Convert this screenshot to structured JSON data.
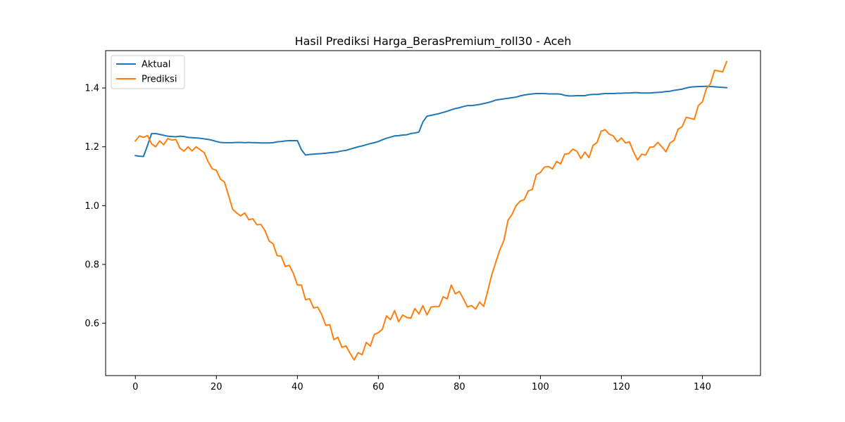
{
  "chart_data": {
    "type": "line",
    "title": "Hasil Prediksi Harga_BerasPremium_roll30 - Aceh",
    "xlabel": "",
    "ylabel": "",
    "xlim": [
      -7.35,
      154.35
    ],
    "ylim": [
      0.422,
      1.527
    ],
    "xticks": [
      0,
      20,
      40,
      60,
      80,
      100,
      120,
      140
    ],
    "xtick_labels": [
      "0",
      "20",
      "40",
      "60",
      "80",
      "100",
      "120",
      "140"
    ],
    "yticks": [
      0.6,
      0.8,
      1.0,
      1.2,
      1.4
    ],
    "ytick_labels": [
      "0.6",
      "0.8",
      "1.0",
      "1.2",
      "1.4"
    ],
    "grid": false,
    "legend_position": "top-left",
    "series": [
      {
        "name": "Aktual",
        "color": "#1f77b4",
        "x": [
          0,
          1,
          2,
          3,
          4,
          5,
          6,
          7,
          8,
          9,
          10,
          11,
          12,
          13,
          14,
          15,
          16,
          17,
          18,
          19,
          20,
          21,
          22,
          23,
          24,
          25,
          26,
          27,
          28,
          29,
          30,
          31,
          32,
          33,
          34,
          35,
          36,
          37,
          38,
          39,
          40,
          41,
          42,
          43,
          44,
          45,
          46,
          47,
          48,
          49,
          50,
          51,
          52,
          53,
          54,
          55,
          56,
          57,
          58,
          59,
          60,
          61,
          62,
          63,
          64,
          65,
          66,
          67,
          68,
          69,
          70,
          71,
          72,
          73,
          74,
          75,
          76,
          77,
          78,
          79,
          80,
          81,
          82,
          83,
          84,
          85,
          86,
          87,
          88,
          89,
          90,
          91,
          92,
          93,
          94,
          95,
          96,
          97,
          98,
          99,
          100,
          101,
          102,
          103,
          104,
          105,
          106,
          107,
          108,
          109,
          110,
          111,
          112,
          113,
          114,
          115,
          116,
          117,
          118,
          119,
          120,
          121,
          122,
          123,
          124,
          125,
          126,
          127,
          128,
          129,
          130,
          131,
          132,
          133,
          134,
          135,
          136,
          137,
          138,
          139,
          140,
          141,
          142,
          143,
          144,
          145,
          146
        ],
        "values": [
          1.17,
          1.168,
          1.167,
          1.205,
          1.245,
          1.245,
          1.242,
          1.239,
          1.236,
          1.235,
          1.234,
          1.236,
          1.235,
          1.232,
          1.231,
          1.23,
          1.229,
          1.227,
          1.225,
          1.222,
          1.218,
          1.215,
          1.214,
          1.214,
          1.214,
          1.215,
          1.215,
          1.214,
          1.215,
          1.214,
          1.214,
          1.213,
          1.213,
          1.213,
          1.214,
          1.217,
          1.218,
          1.22,
          1.221,
          1.221,
          1.221,
          1.19,
          1.172,
          1.174,
          1.175,
          1.176,
          1.177,
          1.178,
          1.18,
          1.181,
          1.183,
          1.186,
          1.188,
          1.192,
          1.196,
          1.2,
          1.203,
          1.207,
          1.211,
          1.214,
          1.218,
          1.224,
          1.229,
          1.233,
          1.237,
          1.238,
          1.24,
          1.241,
          1.245,
          1.247,
          1.25,
          1.285,
          1.304,
          1.307,
          1.31,
          1.313,
          1.317,
          1.321,
          1.326,
          1.33,
          1.333,
          1.337,
          1.34,
          1.34,
          1.342,
          1.344,
          1.347,
          1.35,
          1.354,
          1.359,
          1.361,
          1.363,
          1.365,
          1.367,
          1.369,
          1.373,
          1.376,
          1.378,
          1.38,
          1.381,
          1.381,
          1.381,
          1.38,
          1.38,
          1.38,
          1.379,
          1.375,
          1.373,
          1.373,
          1.374,
          1.374,
          1.374,
          1.377,
          1.378,
          1.378,
          1.38,
          1.381,
          1.381,
          1.381,
          1.382,
          1.382,
          1.383,
          1.383,
          1.384,
          1.384,
          1.383,
          1.383,
          1.383,
          1.384,
          1.385,
          1.386,
          1.388,
          1.389,
          1.392,
          1.394,
          1.396,
          1.4,
          1.403,
          1.404,
          1.405,
          1.405,
          1.406,
          1.405,
          1.404,
          1.403,
          1.402,
          1.401
        ]
      },
      {
        "name": "Prediksi",
        "color": "#ff7f0e",
        "x": [
          0,
          1,
          2,
          3,
          4,
          5,
          6,
          7,
          8,
          9,
          10,
          11,
          12,
          13,
          14,
          15,
          16,
          17,
          18,
          19,
          20,
          21,
          22,
          23,
          24,
          25,
          26,
          27,
          28,
          29,
          30,
          31,
          32,
          33,
          34,
          35,
          36,
          37,
          38,
          39,
          40,
          41,
          42,
          43,
          44,
          45,
          46,
          47,
          48,
          49,
          50,
          51,
          52,
          53,
          54,
          55,
          56,
          57,
          58,
          59,
          60,
          61,
          62,
          63,
          64,
          65,
          66,
          67,
          68,
          69,
          70,
          71,
          72,
          73,
          74,
          75,
          76,
          77,
          78,
          79,
          80,
          81,
          82,
          83,
          84,
          85,
          86,
          87,
          88,
          89,
          90,
          91,
          92,
          93,
          94,
          95,
          96,
          97,
          98,
          99,
          100,
          101,
          102,
          103,
          104,
          105,
          106,
          107,
          108,
          109,
          110,
          111,
          112,
          113,
          114,
          115,
          116,
          117,
          118,
          119,
          120,
          121,
          122,
          123,
          124,
          125,
          126,
          127,
          128,
          129,
          130,
          131,
          132,
          133,
          134,
          135,
          136,
          137,
          138,
          139,
          140,
          141,
          142,
          143,
          144,
          145,
          146
        ],
        "values": [
          1.22,
          1.237,
          1.232,
          1.238,
          1.21,
          1.2,
          1.22,
          1.207,
          1.228,
          1.223,
          1.225,
          1.195,
          1.185,
          1.2,
          1.186,
          1.2,
          1.19,
          1.18,
          1.148,
          1.125,
          1.12,
          1.09,
          1.08,
          1.035,
          0.988,
          0.975,
          0.965,
          0.975,
          0.952,
          0.955,
          0.935,
          0.936,
          0.915,
          0.88,
          0.87,
          0.83,
          0.828,
          0.793,
          0.797,
          0.77,
          0.73,
          0.73,
          0.68,
          0.683,
          0.652,
          0.655,
          0.63,
          0.593,
          0.595,
          0.544,
          0.552,
          0.518,
          0.523,
          0.498,
          0.475,
          0.5,
          0.493,
          0.535,
          0.522,
          0.562,
          0.568,
          0.58,
          0.625,
          0.612,
          0.643,
          0.605,
          0.628,
          0.62,
          0.617,
          0.65,
          0.632,
          0.66,
          0.628,
          0.655,
          0.657,
          0.657,
          0.69,
          0.683,
          0.73,
          0.7,
          0.708,
          0.683,
          0.655,
          0.66,
          0.648,
          0.672,
          0.657,
          0.71,
          0.765,
          0.808,
          0.85,
          0.882,
          0.95,
          0.97,
          1.0,
          1.015,
          1.02,
          1.05,
          1.055,
          1.105,
          1.113,
          1.131,
          1.133,
          1.125,
          1.15,
          1.142,
          1.175,
          1.177,
          1.192,
          1.185,
          1.16,
          1.182,
          1.163,
          1.205,
          1.215,
          1.253,
          1.258,
          1.243,
          1.237,
          1.217,
          1.23,
          1.213,
          1.217,
          1.183,
          1.155,
          1.175,
          1.172,
          1.198,
          1.2,
          1.215,
          1.2,
          1.183,
          1.213,
          1.222,
          1.26,
          1.268,
          1.3,
          1.297,
          1.293,
          1.34,
          1.353,
          1.398,
          1.415,
          1.46,
          1.458,
          1.455,
          1.49
        ]
      }
    ]
  }
}
